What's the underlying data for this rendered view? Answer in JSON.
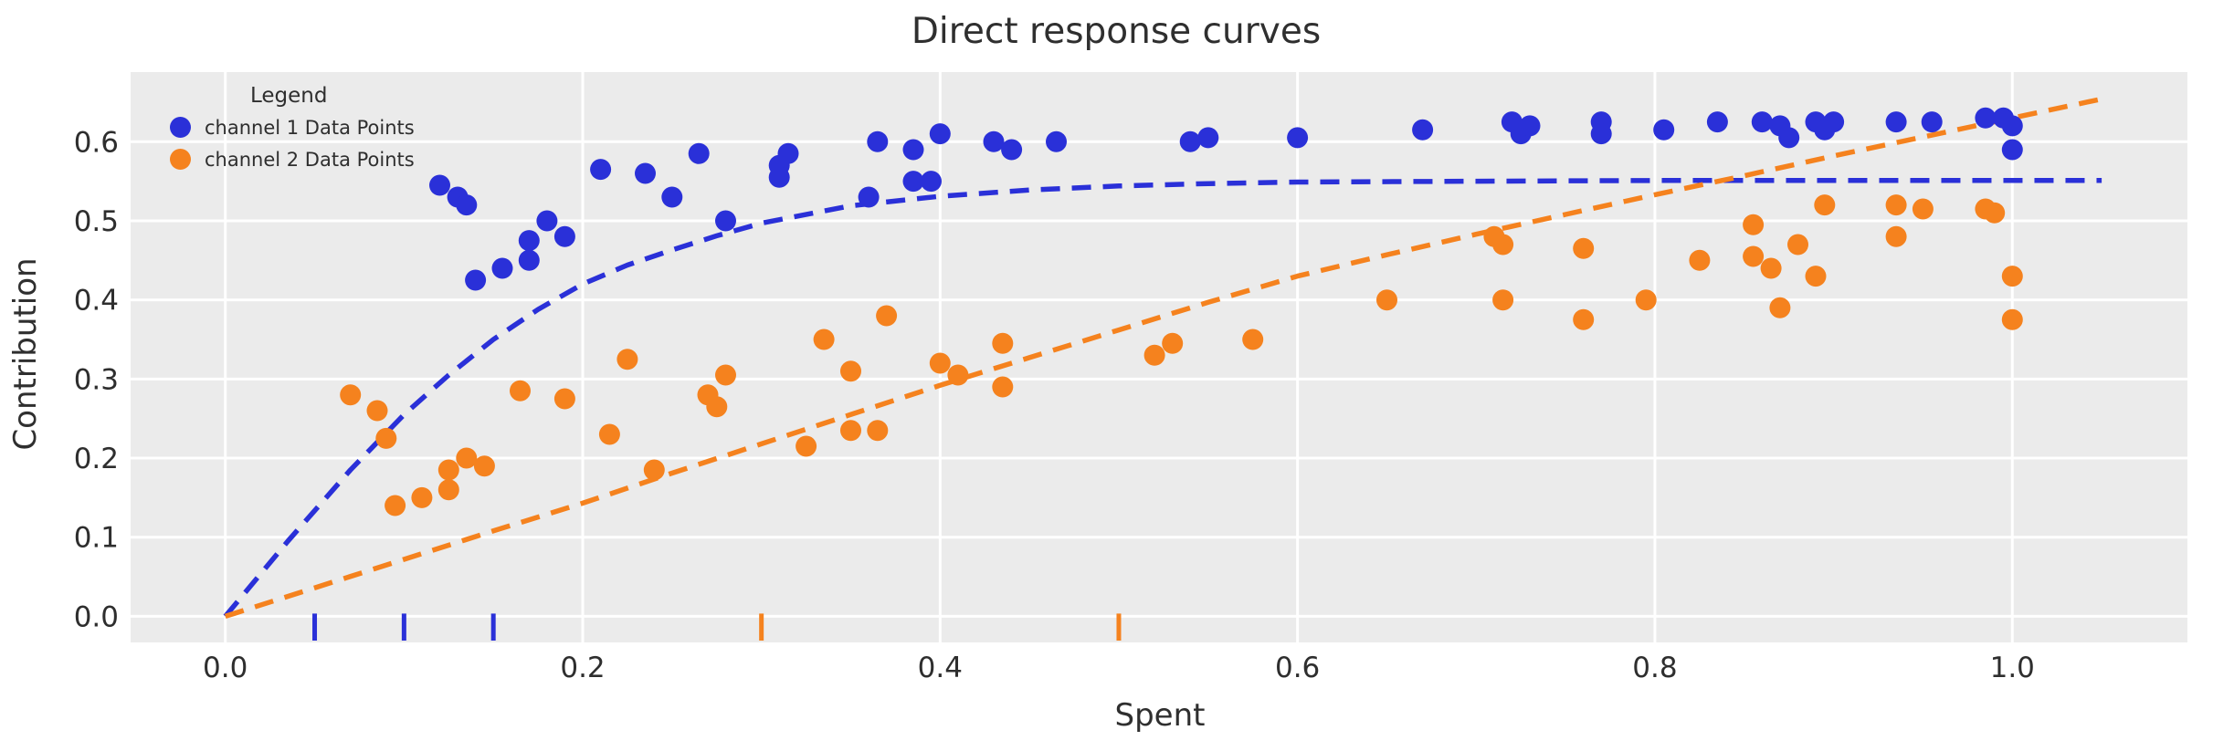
{
  "title": "Direct response curves",
  "axes": {
    "xlabel": "Spent",
    "ylabel": "Contribution",
    "x_tick_values": [
      0.0,
      0.2,
      0.4,
      0.6,
      0.8,
      1.0
    ],
    "x_tick_labels": [
      "0.0",
      "0.2",
      "0.4",
      "0.6",
      "0.8",
      "1.0"
    ],
    "y_tick_values": [
      0.0,
      0.1,
      0.2,
      0.3,
      0.4,
      0.5,
      0.6
    ],
    "y_tick_labels": [
      "0.0",
      "0.1",
      "0.2",
      "0.3",
      "0.4",
      "0.5",
      "0.6"
    ],
    "xlim": [
      -0.053,
      1.098
    ],
    "ylim": [
      -0.033,
      0.688
    ],
    "grid": true
  },
  "legend": {
    "title": "Legend",
    "entries": [
      {
        "label": "channel 1 Data Points",
        "color": "#2a30d8"
      },
      {
        "label": "channel 2 Data Points",
        "color": "#f5821e"
      }
    ]
  },
  "colors": {
    "figure_bg": "#ffffff",
    "plot_bg": "#ebebeb",
    "grid": "#ffffff",
    "channel1": "#2a30d8",
    "channel2": "#f5821e",
    "text": "#2e2e2e"
  },
  "chart_data": {
    "type": "scatter",
    "title": "Direct response curves",
    "xlabel": "Spent",
    "ylabel": "Contribution",
    "xlim": [
      -0.053,
      1.098
    ],
    "ylim": [
      -0.033,
      0.688
    ],
    "legend_position": "upper-left",
    "series": [
      {
        "name": "channel 1 Data Points",
        "color": "#2a30d8",
        "marker_radius": 11.5,
        "points": [
          [
            0.12,
            0.545
          ],
          [
            0.13,
            0.53
          ],
          [
            0.135,
            0.52
          ],
          [
            0.14,
            0.425
          ],
          [
            0.155,
            0.44
          ],
          [
            0.17,
            0.45
          ],
          [
            0.17,
            0.475
          ],
          [
            0.18,
            0.5
          ],
          [
            0.19,
            0.48
          ],
          [
            0.21,
            0.565
          ],
          [
            0.235,
            0.56
          ],
          [
            0.25,
            0.53
          ],
          [
            0.265,
            0.585
          ],
          [
            0.28,
            0.5
          ],
          [
            0.31,
            0.57
          ],
          [
            0.315,
            0.585
          ],
          [
            0.31,
            0.555
          ],
          [
            0.36,
            0.53
          ],
          [
            0.365,
            0.6
          ],
          [
            0.385,
            0.59
          ],
          [
            0.385,
            0.55
          ],
          [
            0.395,
            0.55
          ],
          [
            0.4,
            0.61
          ],
          [
            0.43,
            0.6
          ],
          [
            0.44,
            0.59
          ],
          [
            0.465,
            0.6
          ],
          [
            0.54,
            0.6
          ],
          [
            0.55,
            0.605
          ],
          [
            0.6,
            0.605
          ],
          [
            0.67,
            0.615
          ],
          [
            0.72,
            0.625
          ],
          [
            0.725,
            0.61
          ],
          [
            0.73,
            0.62
          ],
          [
            0.77,
            0.625
          ],
          [
            0.77,
            0.61
          ],
          [
            0.805,
            0.615
          ],
          [
            0.835,
            0.625
          ],
          [
            0.86,
            0.625
          ],
          [
            0.87,
            0.62
          ],
          [
            0.875,
            0.605
          ],
          [
            0.89,
            0.625
          ],
          [
            0.895,
            0.615
          ],
          [
            0.9,
            0.625
          ],
          [
            0.935,
            0.625
          ],
          [
            0.955,
            0.625
          ],
          [
            0.985,
            0.63
          ],
          [
            0.995,
            0.63
          ],
          [
            1.0,
            0.62
          ],
          [
            1.0,
            0.59
          ]
        ]
      },
      {
        "name": "channel 2 Data Points",
        "color": "#f5821e",
        "marker_radius": 11.5,
        "points": [
          [
            0.07,
            0.28
          ],
          [
            0.085,
            0.26
          ],
          [
            0.09,
            0.225
          ],
          [
            0.095,
            0.14
          ],
          [
            0.11,
            0.15
          ],
          [
            0.125,
            0.185
          ],
          [
            0.125,
            0.16
          ],
          [
            0.135,
            0.2
          ],
          [
            0.145,
            0.19
          ],
          [
            0.165,
            0.285
          ],
          [
            0.19,
            0.275
          ],
          [
            0.215,
            0.23
          ],
          [
            0.225,
            0.325
          ],
          [
            0.24,
            0.185
          ],
          [
            0.27,
            0.28
          ],
          [
            0.275,
            0.265
          ],
          [
            0.28,
            0.305
          ],
          [
            0.325,
            0.215
          ],
          [
            0.335,
            0.35
          ],
          [
            0.35,
            0.235
          ],
          [
            0.35,
            0.31
          ],
          [
            0.365,
            0.235
          ],
          [
            0.37,
            0.38
          ],
          [
            0.4,
            0.32
          ],
          [
            0.41,
            0.305
          ],
          [
            0.435,
            0.345
          ],
          [
            0.435,
            0.29
          ],
          [
            0.52,
            0.33
          ],
          [
            0.53,
            0.345
          ],
          [
            0.575,
            0.35
          ],
          [
            0.65,
            0.4
          ],
          [
            0.71,
            0.48
          ],
          [
            0.715,
            0.47
          ],
          [
            0.715,
            0.4
          ],
          [
            0.76,
            0.465
          ],
          [
            0.76,
            0.375
          ],
          [
            0.795,
            0.4
          ],
          [
            0.825,
            0.45
          ],
          [
            0.855,
            0.495
          ],
          [
            0.855,
            0.455
          ],
          [
            0.865,
            0.44
          ],
          [
            0.87,
            0.39
          ],
          [
            0.88,
            0.47
          ],
          [
            0.89,
            0.43
          ],
          [
            0.895,
            0.52
          ],
          [
            0.935,
            0.52
          ],
          [
            0.935,
            0.48
          ],
          [
            0.95,
            0.515
          ],
          [
            0.985,
            0.515
          ],
          [
            0.99,
            0.51
          ],
          [
            1.0,
            0.43
          ],
          [
            1.0,
            0.375
          ]
        ]
      }
    ],
    "curves": [
      {
        "name": "channel 1 response curve",
        "color": "#2a30d8",
        "style": "dashed",
        "points": [
          [
            0,
            0
          ],
          [
            0.035,
            0.095
          ],
          [
            0.07,
            0.185
          ],
          [
            0.1,
            0.255
          ],
          [
            0.125,
            0.305
          ],
          [
            0.15,
            0.35
          ],
          [
            0.175,
            0.388
          ],
          [
            0.2,
            0.42
          ],
          [
            0.225,
            0.444
          ],
          [
            0.25,
            0.463
          ],
          [
            0.275,
            0.481
          ],
          [
            0.3,
            0.497
          ],
          [
            0.35,
            0.519
          ],
          [
            0.4,
            0.531
          ],
          [
            0.45,
            0.539
          ],
          [
            0.5,
            0.544
          ],
          [
            0.55,
            0.547
          ],
          [
            0.6,
            0.549
          ],
          [
            0.7,
            0.55
          ],
          [
            0.8,
            0.551
          ],
          [
            0.9,
            0.551
          ],
          [
            1.0,
            0.551
          ],
          [
            1.05,
            0.551
          ]
        ]
      },
      {
        "name": "channel 2 response curve",
        "color": "#f5821e",
        "style": "dashed",
        "points": [
          [
            0,
            0
          ],
          [
            0.05,
            0.036
          ],
          [
            0.1,
            0.072
          ],
          [
            0.15,
            0.108
          ],
          [
            0.2,
            0.143
          ],
          [
            0.25,
            0.181
          ],
          [
            0.3,
            0.218
          ],
          [
            0.35,
            0.255
          ],
          [
            0.4,
            0.292
          ],
          [
            0.45,
            0.327
          ],
          [
            0.5,
            0.362
          ],
          [
            0.55,
            0.397
          ],
          [
            0.6,
            0.43
          ],
          [
            0.65,
            0.457
          ],
          [
            0.7,
            0.483
          ],
          [
            0.75,
            0.508
          ],
          [
            0.8,
            0.533
          ],
          [
            0.85,
            0.557
          ],
          [
            0.9,
            0.582
          ],
          [
            0.95,
            0.606
          ],
          [
            1.0,
            0.63
          ],
          [
            1.05,
            0.654
          ]
        ]
      }
    ],
    "rug_ticks": [
      {
        "name": "channel 1 spend ticks",
        "color": "#2a30d8",
        "x": [
          0.05,
          0.1,
          0.15
        ]
      },
      {
        "name": "channel 2 spend ticks",
        "color": "#f5821e",
        "x": [
          0.3,
          0.5
        ]
      }
    ]
  }
}
